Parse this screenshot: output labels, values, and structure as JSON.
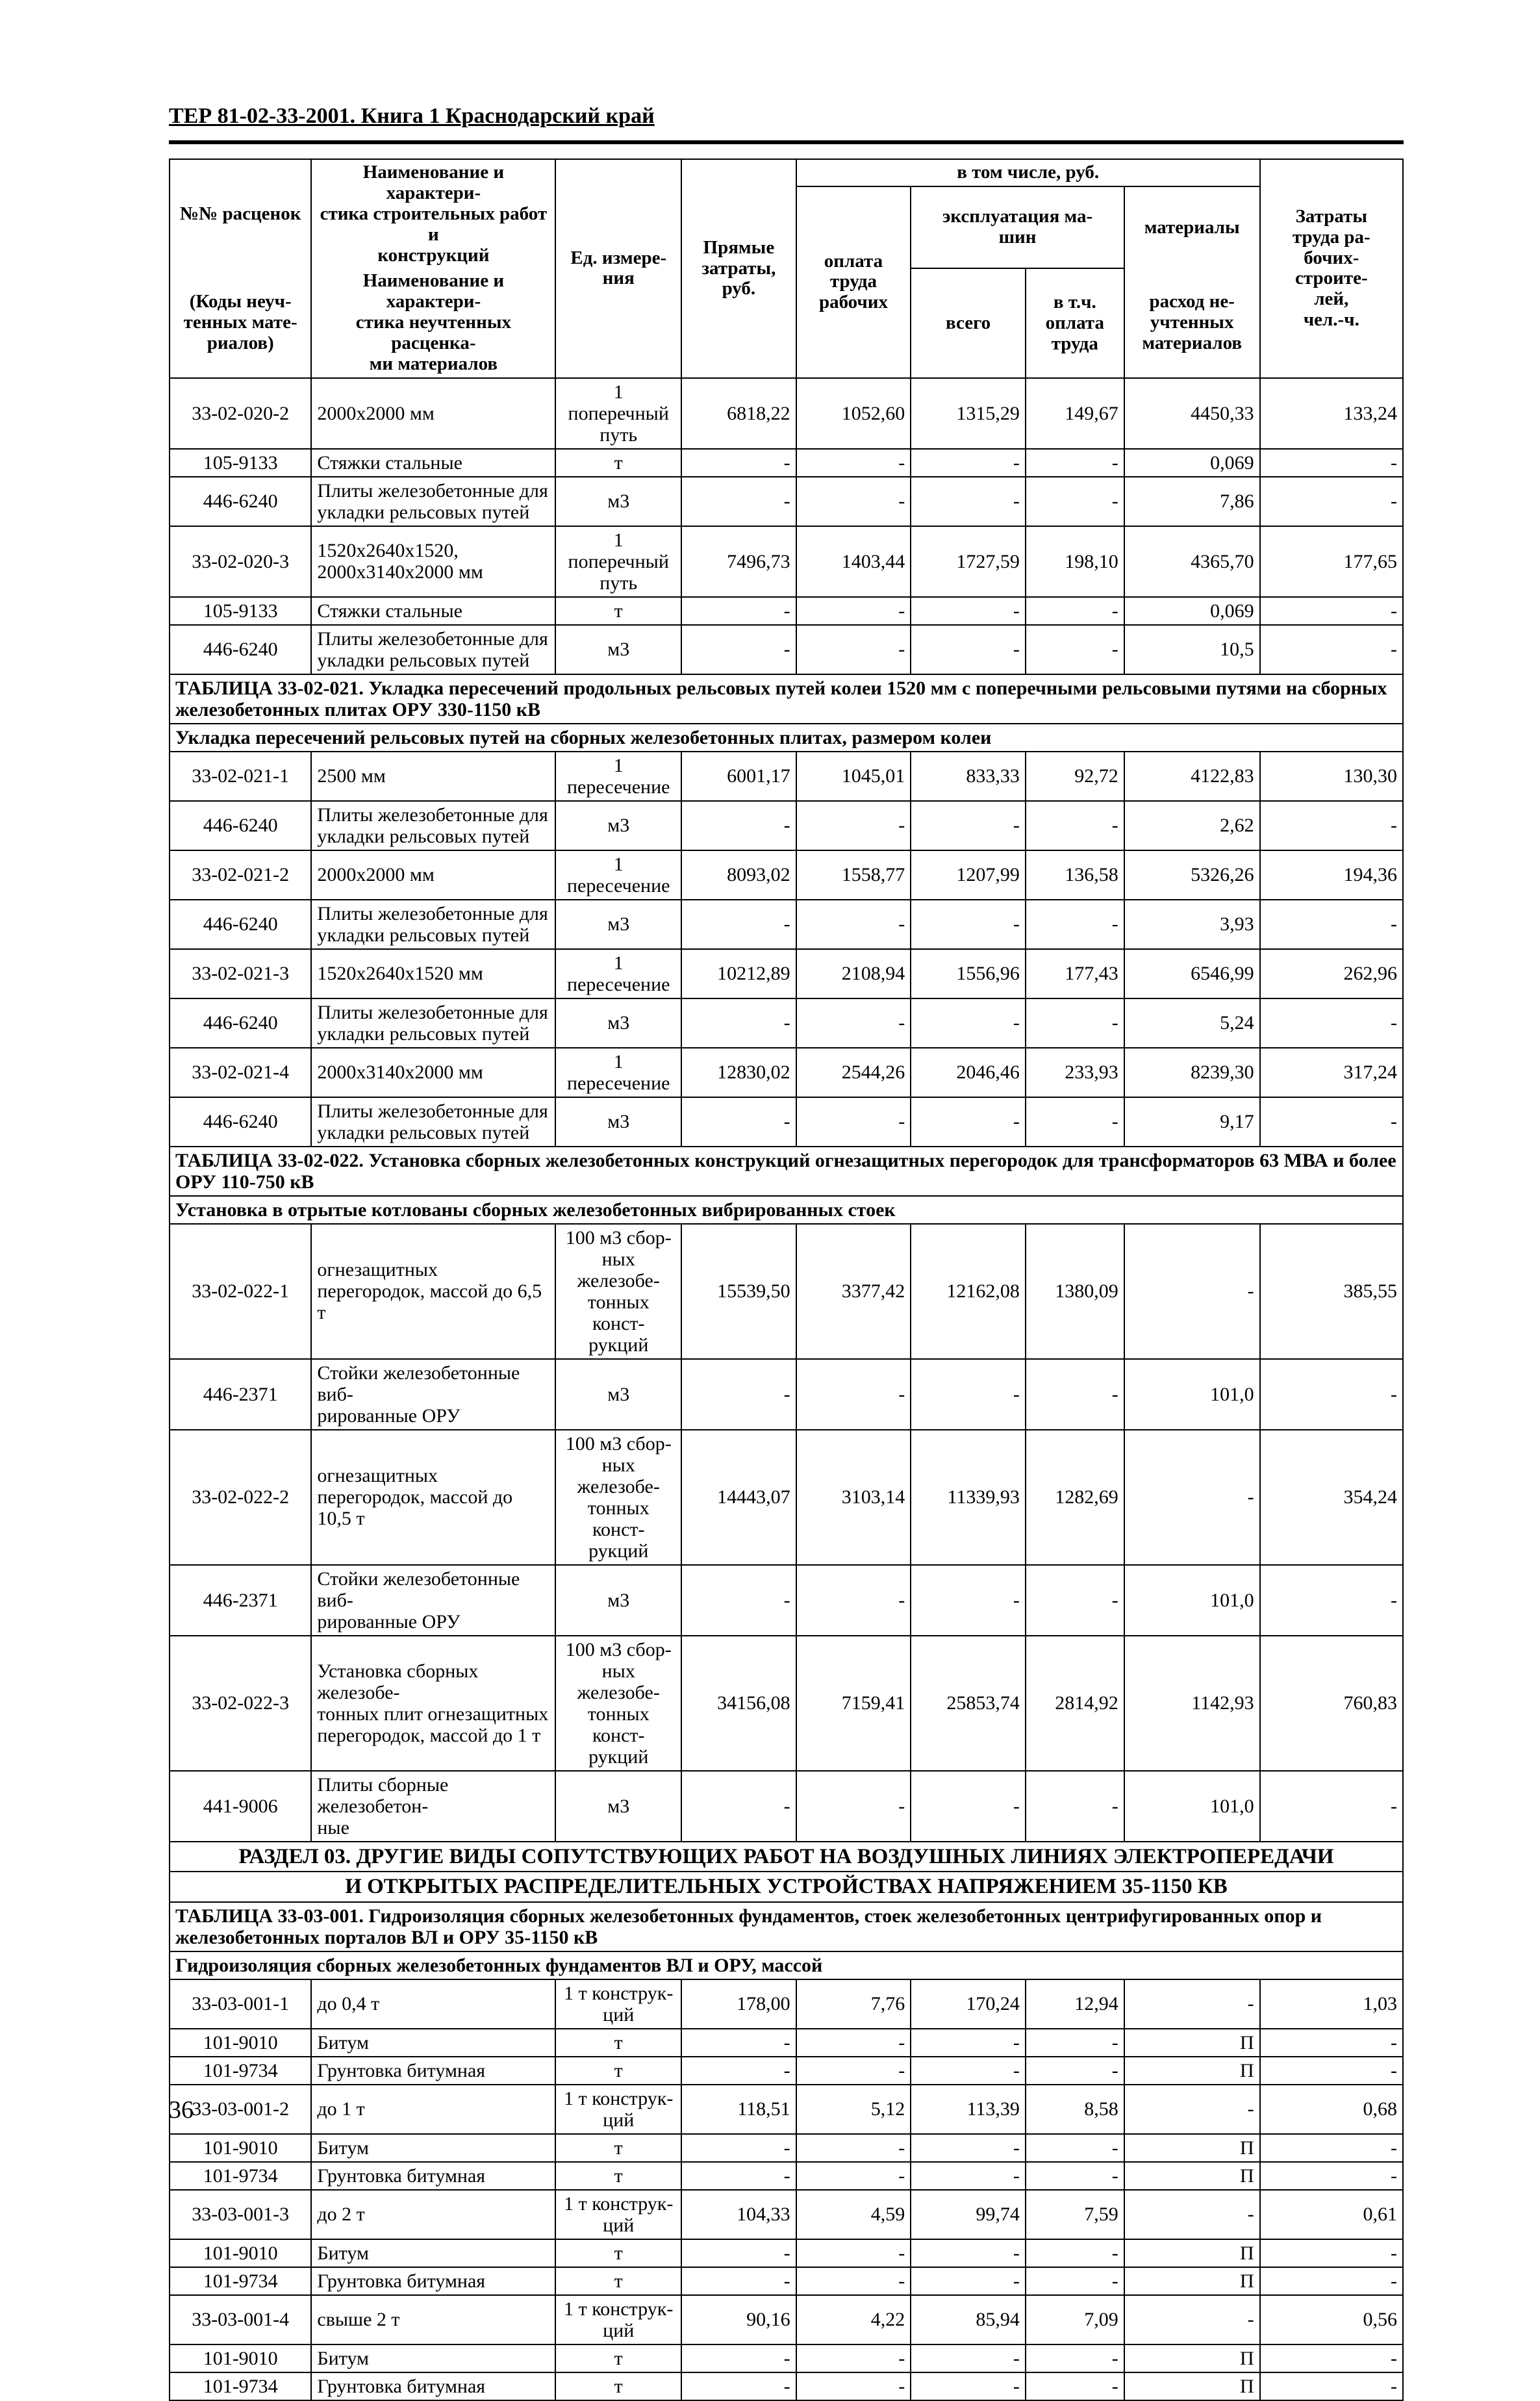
{
  "doc": {
    "header": "ТЕР 81-02-33-2001. Книга 1  Краснодарский край",
    "page_number": "36"
  },
  "columns": {
    "code_top": "№№ расценок",
    "code_bottom": "(Коды неуч-\nтенных мате-\nриалов)",
    "name_top": "Наименование и характери-\nстика строительных работ и\nконструкций",
    "name_bottom": "Наименование и характери-\nстика неучтенных расценка-\nми материалов",
    "unit": "Ед. измере-\nния",
    "direct": "Прямые\nзатраты,\nруб.",
    "incl_group": "в том числе, руб.",
    "labor": "оплата\nтруда\nрабочих",
    "mach_group": "эксплуатация ма-\nшин",
    "mach_total": "всего",
    "mach_incl": "в т.ч.\nоплата\nтруда",
    "materials": "материалы",
    "materials_sub": "расход не-\nучтенных\nматериалов",
    "work": "Затраты\nтруда ра-\nбочих-\nстроите-\nлей,\nчел.-ч."
  },
  "sections": {
    "tbl021": "ТАБЛИЦА  33-02-021.  Укладка пересечений продольных рельсовых путей колеи 1520 мм с поперечными рельсовыми путями на сборных железобетонных плитах ОРУ 330-1150 кВ",
    "sub021": "Укладка пересечений рельсовых путей на сборных железобетонных плитах, размером колеи",
    "tbl022": "ТАБЛИЦА  33-02-022.  Установка сборных железобетонных конструкций огнезащитных перегородок для трансформаторов 63 МВА и более ОРУ 110-750 кВ",
    "sub022": "Установка в отрытые котлованы сборных железобетонных вибрированных стоек",
    "section03a": "РАЗДЕЛ 03. ДРУГИЕ ВИДЫ СОПУТСТВУЮЩИХ РАБОТ НА ВОЗДУШНЫХ ЛИНИЯХ ЭЛЕКТРОПЕРЕДАЧИ",
    "section03b": "И ОТКРЫТЫХ РАСПРЕДЕЛИТЕЛЬНЫХ УСТРОЙСТВАХ НАПРЯЖЕНИЕМ 35-1150 КВ",
    "tbl001": "ТАБЛИЦА  33-03-001.  Гидроизоляция сборных железобетонных фундаментов, стоек железобетонных центрифугированных опор и железобетонных порталов ВЛ и ОРУ 35-1150 кВ",
    "sub001": "Гидроизоляция сборных железобетонных фундаментов ВЛ и ОРУ, массой"
  },
  "rows": [
    {
      "code": "33-02-020-2",
      "name": "2000х2000 мм",
      "unit": "1 поперечный путь",
      "v": [
        "6818,22",
        "1052,60",
        "1315,29",
        "149,67",
        "4450,33",
        "133,24"
      ]
    },
    {
      "code": "105-9133",
      "name": "Стяжки стальные",
      "unit": "т",
      "v": [
        "-",
        "-",
        "-",
        "-",
        "0,069",
        "-"
      ]
    },
    {
      "code": "446-6240",
      "name": "Плиты железобетонные для укладки рельсовых путей",
      "unit": "м3",
      "v": [
        "-",
        "-",
        "-",
        "-",
        "7,86",
        "-"
      ]
    },
    {
      "code": "33-02-020-3",
      "name": "1520х2640х1520, 2000х3140х2000 мм",
      "unit": "1 поперечный путь",
      "v": [
        "7496,73",
        "1403,44",
        "1727,59",
        "198,10",
        "4365,70",
        "177,65"
      ]
    },
    {
      "code": "105-9133",
      "name": "Стяжки стальные",
      "unit": "т",
      "v": [
        "-",
        "-",
        "-",
        "-",
        "0,069",
        "-"
      ]
    },
    {
      "code": "446-6240",
      "name": "Плиты железобетонные для укладки рельсовых путей",
      "unit": "м3",
      "v": [
        "-",
        "-",
        "-",
        "-",
        "10,5",
        "-"
      ]
    },
    {
      "code": "33-02-021-1",
      "name": "2500 мм",
      "unit": "1 пересечение",
      "v": [
        "6001,17",
        "1045,01",
        "833,33",
        "92,72",
        "4122,83",
        "130,30"
      ]
    },
    {
      "code": "446-6240",
      "name": "Плиты железобетонные для укладки рельсовых путей",
      "unit": "м3",
      "v": [
        "-",
        "-",
        "-",
        "-",
        "2,62",
        "-"
      ]
    },
    {
      "code": "33-02-021-2",
      "name": "2000х2000 мм",
      "unit": "1 пересечение",
      "v": [
        "8093,02",
        "1558,77",
        "1207,99",
        "136,58",
        "5326,26",
        "194,36"
      ]
    },
    {
      "code": "446-6240",
      "name": "Плиты железобетонные для укладки рельсовых путей",
      "unit": "м3",
      "v": [
        "-",
        "-",
        "-",
        "-",
        "3,93",
        "-"
      ]
    },
    {
      "code": "33-02-021-3",
      "name": "1520х2640х1520 мм",
      "unit": "1 пересечение",
      "v": [
        "10212,89",
        "2108,94",
        "1556,96",
        "177,43",
        "6546,99",
        "262,96"
      ]
    },
    {
      "code": "446-6240",
      "name": "Плиты железобетонные для укладки рельсовых путей",
      "unit": "м3",
      "v": [
        "-",
        "-",
        "-",
        "-",
        "5,24",
        "-"
      ]
    },
    {
      "code": "33-02-021-4",
      "name": "2000х3140х2000 мм",
      "unit": "1 пересечение",
      "v": [
        "12830,02",
        "2544,26",
        "2046,46",
        "233,93",
        "8239,30",
        "317,24"
      ]
    },
    {
      "code": "446-6240",
      "name": "Плиты железобетонные для укладки рельсовых путей",
      "unit": "м3",
      "v": [
        "-",
        "-",
        "-",
        "-",
        "9,17",
        "-"
      ]
    },
    {
      "code": "33-02-022-1",
      "name": "огнезащитных перегородок, массой до 6,5 т",
      "unit": "100 м3 сбор-\nных железобе-\nтонных конст-\nрукций",
      "v": [
        "15539,50",
        "3377,42",
        "12162,08",
        "1380,09",
        "-",
        "385,55"
      ]
    },
    {
      "code": "446-2371",
      "name": "Стойки железобетонные виб-\nрированные ОРУ",
      "unit": "м3",
      "v": [
        "-",
        "-",
        "-",
        "-",
        "101,0",
        "-"
      ]
    },
    {
      "code": "33-02-022-2",
      "name": "огнезащитных перегородок, массой до 10,5 т",
      "unit": "100 м3 сбор-\nных железобе-\nтонных конст-\nрукций",
      "v": [
        "14443,07",
        "3103,14",
        "11339,93",
        "1282,69",
        "-",
        "354,24"
      ]
    },
    {
      "code": "446-2371",
      "name": "Стойки железобетонные виб-\nрированные ОРУ",
      "unit": "м3",
      "v": [
        "-",
        "-",
        "-",
        "-",
        "101,0",
        "-"
      ]
    },
    {
      "code": "33-02-022-3",
      "name": "Установка сборных железобе-\nтонных плит огнезащитных перегородок, массой до 1 т",
      "unit": "100 м3 сбор-\nных железобе-\nтонных конст-\nрукций",
      "v": [
        "34156,08",
        "7159,41",
        "25853,74",
        "2814,92",
        "1142,93",
        "760,83"
      ]
    },
    {
      "code": "441-9006",
      "name": "Плиты сборные железобетон-\nные",
      "unit": "м3",
      "v": [
        "-",
        "-",
        "-",
        "-",
        "101,0",
        "-"
      ]
    },
    {
      "code": "33-03-001-1",
      "name": "до 0,4 т",
      "unit": "1 т конструк-\nций",
      "v": [
        "178,00",
        "7,76",
        "170,24",
        "12,94",
        "-",
        "1,03"
      ]
    },
    {
      "code": "101-9010",
      "name": "Битум",
      "unit": "т",
      "v": [
        "-",
        "-",
        "-",
        "-",
        "П",
        "-"
      ]
    },
    {
      "code": "101-9734",
      "name": "Грунтовка битумная",
      "unit": "т",
      "v": [
        "-",
        "-",
        "-",
        "-",
        "П",
        "-"
      ]
    },
    {
      "code": "33-03-001-2",
      "name": "до 1 т",
      "unit": "1 т конструк-\nций",
      "v": [
        "118,51",
        "5,12",
        "113,39",
        "8,58",
        "-",
        "0,68"
      ]
    },
    {
      "code": "101-9010",
      "name": "Битум",
      "unit": "т",
      "v": [
        "-",
        "-",
        "-",
        "-",
        "П",
        "-"
      ]
    },
    {
      "code": "101-9734",
      "name": "Грунтовка битумная",
      "unit": "т",
      "v": [
        "-",
        "-",
        "-",
        "-",
        "П",
        "-"
      ]
    },
    {
      "code": "33-03-001-3",
      "name": "до 2 т",
      "unit": "1 т конструк-\nций",
      "v": [
        "104,33",
        "4,59",
        "99,74",
        "7,59",
        "-",
        "0,61"
      ]
    },
    {
      "code": "101-9010",
      "name": "Битум",
      "unit": "т",
      "v": [
        "-",
        "-",
        "-",
        "-",
        "П",
        "-"
      ]
    },
    {
      "code": "101-9734",
      "name": "Грунтовка битумная",
      "unit": "т",
      "v": [
        "-",
        "-",
        "-",
        "-",
        "П",
        "-"
      ]
    },
    {
      "code": "33-03-001-4",
      "name": "свыше 2 т",
      "unit": "1 т конструк-\nций",
      "v": [
        "90,16",
        "4,22",
        "85,94",
        "7,09",
        "-",
        "0,56"
      ]
    },
    {
      "code": "101-9010",
      "name": "Битум",
      "unit": "т",
      "v": [
        "-",
        "-",
        "-",
        "-",
        "П",
        "-"
      ]
    },
    {
      "code": "101-9734",
      "name": "Грунтовка битумная",
      "unit": "т",
      "v": [
        "-",
        "-",
        "-",
        "-",
        "П",
        "-"
      ]
    }
  ]
}
